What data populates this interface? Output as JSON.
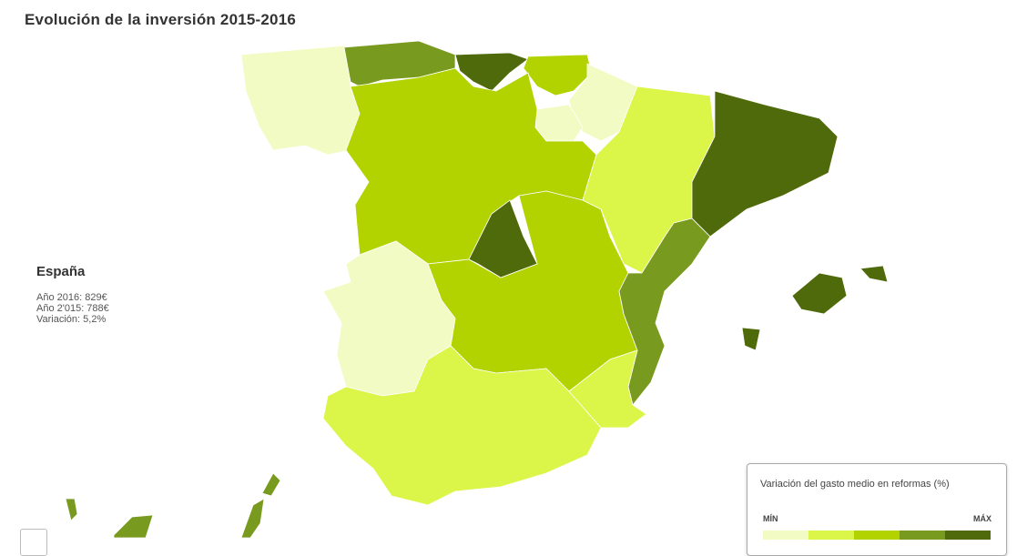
{
  "title": "Evolución de la inversión 2015-2016",
  "summary": {
    "region": "España",
    "lines": [
      "Año 2016: 829€",
      "Año 2'015: 788€",
      "Variación: 5,2%"
    ]
  },
  "legend": {
    "title": "Variación del gasto medio en reformas (%)",
    "min": "MÍN",
    "max": "MÁX",
    "colors": [
      "#f2fbc3",
      "#dcf549",
      "#b2d300",
      "#789a1f",
      "#4f6a0a"
    ]
  }
}
